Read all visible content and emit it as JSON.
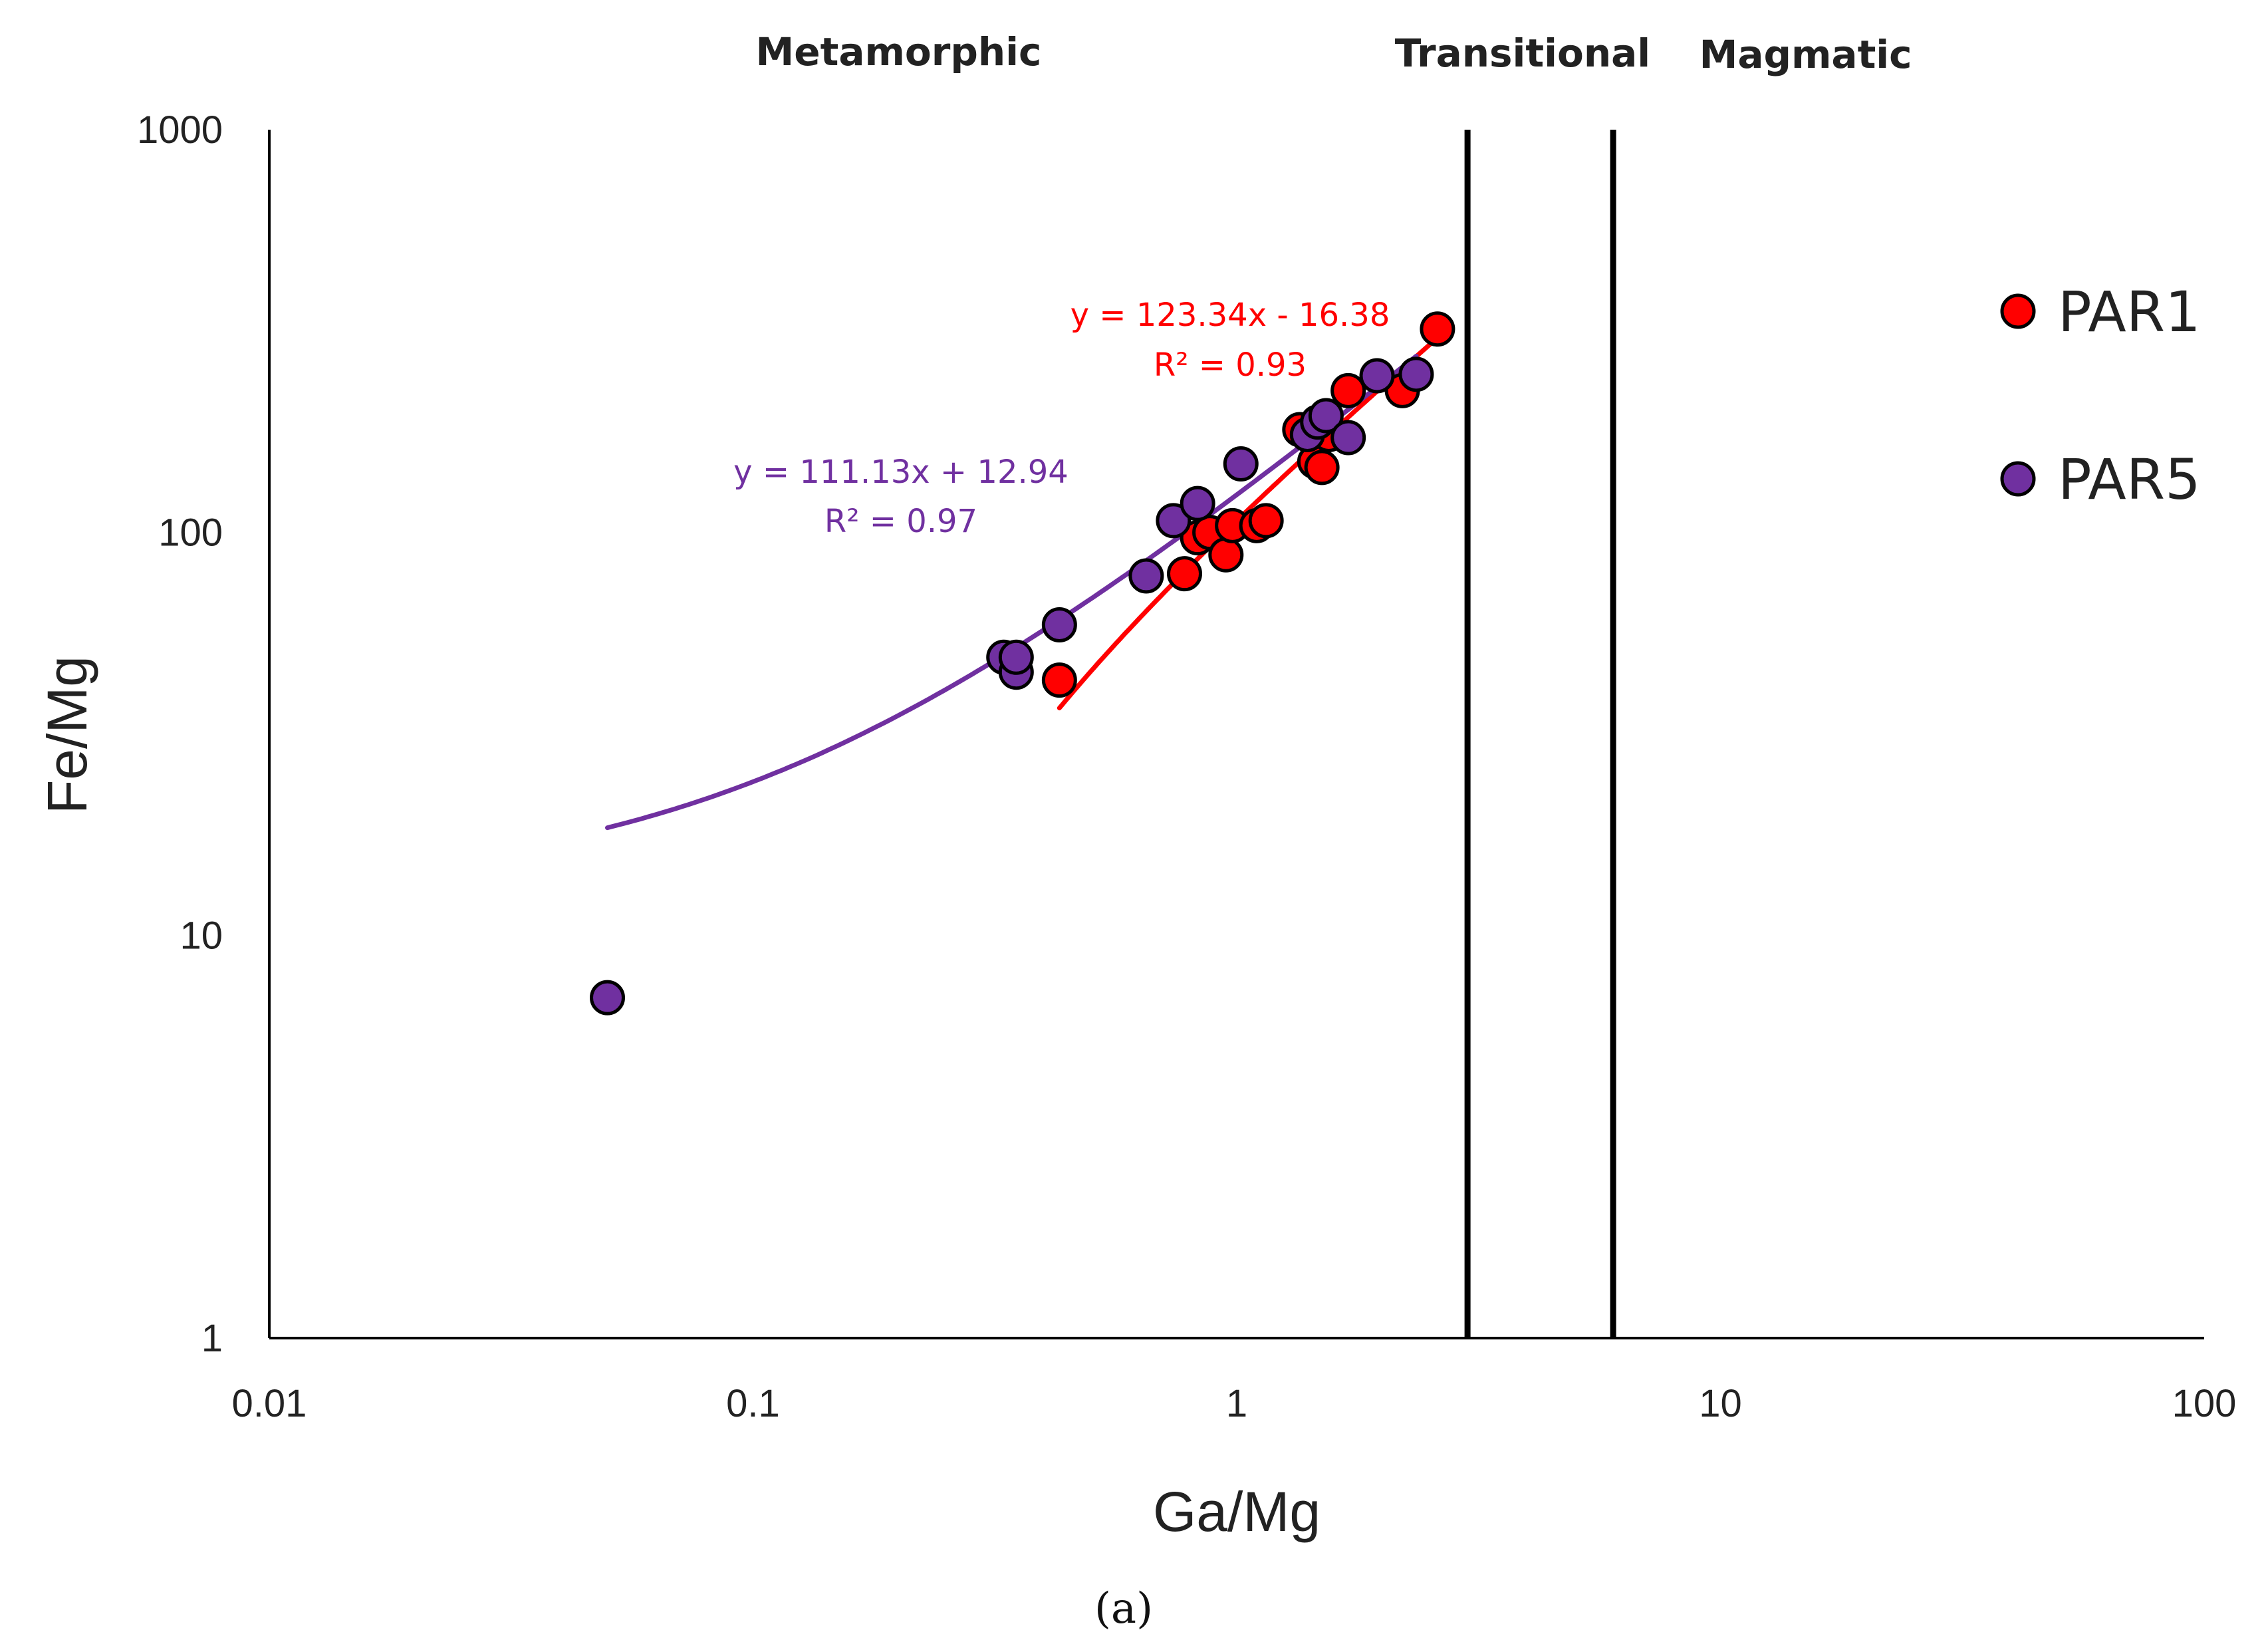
{
  "chart_data": {
    "type": "scatter",
    "title": "",
    "xlabel": "Ga/Mg",
    "ylabel": "Fe/Mg",
    "xscale": "log",
    "yscale": "log",
    "xlim": [
      0.01,
      100
    ],
    "ylim": [
      1,
      1000
    ],
    "x_ticks": [
      {
        "value": 0.01,
        "label": "0.01"
      },
      {
        "value": 0.1,
        "label": "0.1"
      },
      {
        "value": 1,
        "label": "1"
      },
      {
        "value": 10,
        "label": "10"
      },
      {
        "value": 100,
        "label": "100"
      }
    ],
    "y_ticks": [
      {
        "value": 1,
        "label": "1"
      },
      {
        "value": 10,
        "label": "10"
      },
      {
        "value": 100,
        "label": "100"
      },
      {
        "value": 1000,
        "label": "1000"
      }
    ],
    "boundaries": [
      3,
      6
    ],
    "regions": [
      {
        "label": "Metamorphic",
        "x": 0.2
      },
      {
        "label": "Transitional",
        "x": 3.9
      },
      {
        "label": "Magmatic",
        "x": 15
      }
    ],
    "legend_position": "right",
    "series": [
      {
        "name": "PAR1",
        "color": "#ff0000",
        "points": [
          [
            0.43,
            43
          ],
          [
            0.78,
            79
          ],
          [
            0.83,
            97
          ],
          [
            0.88,
            100
          ],
          [
            0.95,
            88
          ],
          [
            0.98,
            104
          ],
          [
            1.1,
            104
          ],
          [
            1.15,
            107
          ],
          [
            1.35,
            180
          ],
          [
            1.45,
            150
          ],
          [
            1.5,
            145
          ],
          [
            1.55,
            175
          ],
          [
            1.7,
            225
          ],
          [
            2.2,
            225
          ],
          [
            2.6,
            320
          ]
        ],
        "trend": {
          "slope": 123.34,
          "intercept": -16.38,
          "x_range": [
            0.43,
            2.6
          ],
          "equation": "y = 123.34x - 16.38",
          "r2": "R² = 0.93"
        }
      },
      {
        "name": "PAR5",
        "color": "#7030a0",
        "points": [
          [
            0.05,
            7
          ],
          [
            0.33,
            49
          ],
          [
            0.35,
            45
          ],
          [
            0.35,
            49
          ],
          [
            0.43,
            59
          ],
          [
            0.65,
            78
          ],
          [
            0.74,
            107
          ],
          [
            0.83,
            118
          ],
          [
            1.02,
            148
          ],
          [
            1.4,
            175
          ],
          [
            1.47,
            188
          ],
          [
            1.53,
            195
          ],
          [
            1.7,
            172
          ],
          [
            1.95,
            245
          ],
          [
            2.35,
            247
          ]
        ],
        "trend": {
          "slope": 111.13,
          "intercept": 12.94,
          "x_range": [
            0.05,
            2.35
          ],
          "equation": "y = 111.13x + 12.94",
          "r2": "R² = 0.97"
        }
      }
    ]
  },
  "caption": {
    "text": "(a)"
  },
  "colors": {
    "axis": "#000000",
    "boundary": "#000000",
    "marker_stroke": "#000000"
  }
}
